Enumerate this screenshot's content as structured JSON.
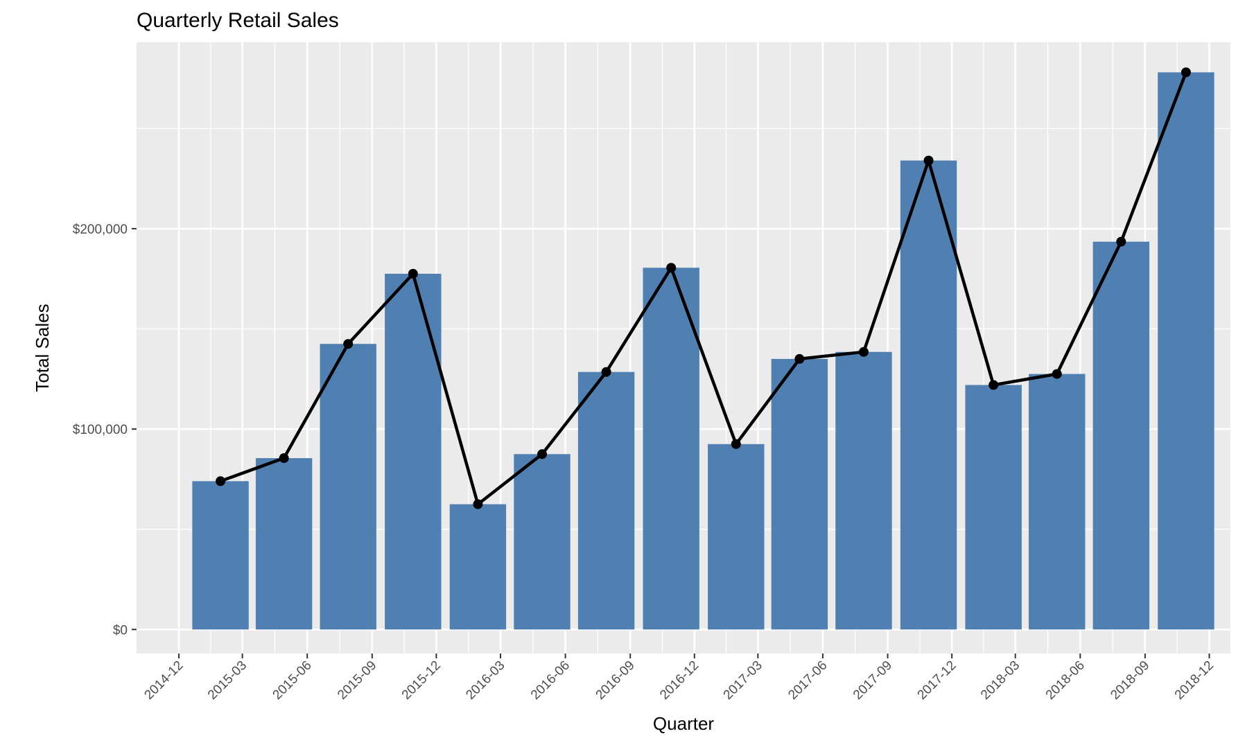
{
  "chart_data": {
    "type": "bar",
    "title": "Quarterly Retail Sales",
    "xlabel": "Quarter",
    "ylabel": "Total Sales",
    "x_axis": {
      "type": "date",
      "range": [
        "2014-10-02",
        "2018-12-31"
      ],
      "tick_labels": [
        "2014-12",
        "2015-03",
        "2015-06",
        "2015-09",
        "2015-12",
        "2016-03",
        "2016-06",
        "2016-09",
        "2016-12",
        "2017-03",
        "2017-06",
        "2017-09",
        "2017-12",
        "2018-03",
        "2018-06",
        "2018-09",
        "2018-12"
      ],
      "tick_dates": [
        "2014-12-01",
        "2015-03-01",
        "2015-06-01",
        "2015-09-01",
        "2015-12-01",
        "2016-03-01",
        "2016-06-01",
        "2016-09-01",
        "2016-12-01",
        "2017-03-01",
        "2017-06-01",
        "2017-09-01",
        "2017-12-01",
        "2018-03-01",
        "2018-06-01",
        "2018-09-01",
        "2018-12-01"
      ]
    },
    "y_axis": {
      "range": [
        -12000,
        293000
      ],
      "ticks": [
        0,
        100000,
        200000
      ],
      "tick_labels": [
        "$0",
        "$100,000",
        "$200,000"
      ],
      "minor_ticks": [
        50000,
        150000,
        250000
      ]
    },
    "grid": true,
    "legend": "none",
    "x": [
      "2015-01-29",
      "2015-04-29",
      "2015-07-29",
      "2015-10-29",
      "2016-01-29",
      "2016-04-29",
      "2016-07-29",
      "2016-10-29",
      "2017-01-29",
      "2017-04-29",
      "2017-07-29",
      "2017-10-29",
      "2018-01-29",
      "2018-04-29",
      "2018-07-29",
      "2018-10-29"
    ],
    "values": [
      74000,
      85500,
      142500,
      177500,
      62500,
      87500,
      128500,
      180500,
      92500,
      135000,
      138500,
      234000,
      122000,
      127500,
      193500,
      278000
    ],
    "series": [
      {
        "type": "bar",
        "color": "#5080b1"
      },
      {
        "type": "line",
        "color": "#000000",
        "markers": true
      }
    ]
  },
  "colors": {
    "panel_background": "#ebebeb",
    "grid_major": "#ffffff",
    "bar_fill": "#5080b1",
    "line": "#000000"
  }
}
